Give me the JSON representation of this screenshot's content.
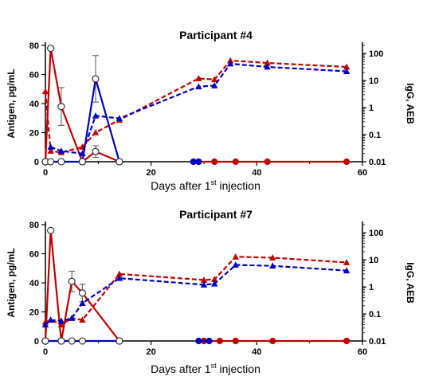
{
  "chart_data": [
    {
      "type": "line",
      "title": "Participant #4",
      "xlabel": "Days after 1st injection",
      "xlabel_parts": [
        "Days after 1",
        "st",
        " injection"
      ],
      "ylabel": "Antigen, pg/mL",
      "y2label": "IgG,  AEB",
      "xlim": [
        0,
        60
      ],
      "ylim": [
        0,
        80
      ],
      "y2lim": [
        0.01,
        200
      ],
      "y2scale": "log",
      "xticks": [
        "0",
        "20",
        "40",
        "60"
      ],
      "yticks": [
        "0",
        "20",
        "40",
        "60",
        "80"
      ],
      "y2ticks": [
        "0.01",
        "0.1",
        "1",
        "10",
        "100"
      ],
      "grid": false,
      "series": [
        {
          "color": "#c00000",
          "axis": "left",
          "style": "solid",
          "marker": "open-circle",
          "points": [
            [
              0,
              0
            ],
            [
              1,
              78
            ],
            [
              3,
              38
            ],
            [
              7,
              0
            ],
            [
              9.5,
              7
            ],
            [
              14,
              0
            ]
          ],
          "errors": [
            0,
            0,
            13,
            0,
            4,
            0
          ]
        },
        {
          "color": "#0000c0",
          "axis": "left",
          "style": "solid",
          "marker": "open-circle",
          "points": [
            [
              0,
              0
            ],
            [
              1,
              0
            ],
            [
              3,
              0
            ],
            [
              7,
              0
            ],
            [
              9.5,
              57
            ],
            [
              14,
              0
            ]
          ],
          "errors": [
            0,
            0,
            0,
            0,
            16,
            0
          ]
        },
        {
          "color": "#c00000",
          "axis": "left",
          "style": "solid",
          "marker": "filled-circle",
          "points": [
            [
              29,
              0
            ],
            [
              32,
              0
            ],
            [
              36,
              0
            ],
            [
              42,
              0
            ],
            [
              57,
              0
            ]
          ]
        },
        {
          "color": "#0000c0",
          "axis": "left",
          "style": "solid",
          "marker": "filled-circle",
          "points": [
            [
              28,
              0
            ],
            [
              29,
              0
            ]
          ]
        },
        {
          "color": "#c00000",
          "axis": "right",
          "style": "dashed",
          "marker": "triangle",
          "points": [
            [
              0,
              4
            ],
            [
              1,
              0.025
            ],
            [
              3,
              0.022
            ],
            [
              7,
              0.035
            ],
            [
              9.5,
              0.12
            ],
            [
              14,
              0.35
            ],
            [
              29,
              12
            ],
            [
              32,
              11
            ],
            [
              35,
              55
            ],
            [
              42,
              45
            ],
            [
              57,
              32
            ]
          ]
        },
        {
          "color": "#0000c0",
          "axis": "right",
          "style": "dashed",
          "marker": "triangle",
          "points": [
            [
              1,
              0.035
            ],
            [
              3,
              0.025
            ],
            [
              7,
              0.02
            ],
            [
              9.5,
              0.5
            ],
            [
              14,
              0.4
            ],
            [
              29,
              6
            ],
            [
              32,
              6.5
            ],
            [
              35,
              42
            ],
            [
              42,
              32
            ],
            [
              57,
              22
            ]
          ]
        }
      ]
    },
    {
      "type": "line",
      "title": "Participant #7",
      "xlabel": "Days after 1st injection",
      "xlabel_parts": [
        "Days after 1",
        "st",
        " injection"
      ],
      "ylabel": "Antigen, pg/mL",
      "y2label": "IgG,  AEB",
      "xlim": [
        0,
        60
      ],
      "ylim": [
        0,
        80
      ],
      "y2lim": [
        0.01,
        200
      ],
      "y2scale": "log",
      "xticks": [
        "0",
        "20",
        "40",
        "60"
      ],
      "yticks": [
        "0",
        "20",
        "40",
        "60",
        "80"
      ],
      "y2ticks": [
        "0.01",
        "0.1",
        "1",
        "10",
        "100"
      ],
      "grid": false,
      "series": [
        {
          "color": "#c00000",
          "axis": "left",
          "style": "solid",
          "marker": "open-circle",
          "points": [
            [
              0,
              0
            ],
            [
              1,
              76
            ],
            [
              3,
              0
            ],
            [
              5,
              41
            ],
            [
              7,
              33
            ],
            [
              14,
              0
            ]
          ],
          "errors": [
            0,
            0,
            0,
            7,
            6,
            0
          ]
        },
        {
          "color": "#0000c0",
          "axis": "left",
          "style": "solid",
          "marker": "open-circle",
          "points": [
            [
              0,
              0
            ],
            [
              3,
              0
            ],
            [
              5,
              0
            ],
            [
              7,
              0
            ],
            [
              14,
              0
            ]
          ]
        },
        {
          "color": "#c00000",
          "axis": "left",
          "style": "solid",
          "marker": "filled-circle",
          "points": [
            [
              30,
              0
            ],
            [
              33,
              0
            ],
            [
              36,
              0
            ],
            [
              43,
              0
            ],
            [
              57,
              0
            ]
          ]
        },
        {
          "color": "#0000c0",
          "axis": "left",
          "style": "solid",
          "marker": "filled-circle",
          "points": [
            [
              29,
              0
            ],
            [
              31,
              0
            ]
          ]
        },
        {
          "color": "#c00000",
          "axis": "right",
          "style": "dashed",
          "marker": "triangle",
          "points": [
            [
              0,
              0.05
            ],
            [
              1,
              0.06
            ],
            [
              3,
              0.04
            ],
            [
              5,
              0.07
            ],
            [
              7,
              0.06
            ],
            [
              14,
              3
            ],
            [
              30,
              1.8
            ],
            [
              32,
              1.9
            ],
            [
              36,
              13
            ],
            [
              43,
              12
            ],
            [
              57,
              8
            ]
          ]
        },
        {
          "color": "#0000c0",
          "axis": "right",
          "style": "dashed",
          "marker": "triangle",
          "points": [
            [
              0,
              0.04
            ],
            [
              1,
              0.06
            ],
            [
              3,
              0.055
            ],
            [
              5,
              0.07
            ],
            [
              7,
              0.25
            ],
            [
              14,
              2.1
            ],
            [
              30,
              1.2
            ],
            [
              32,
              1.3
            ],
            [
              36,
              6.5
            ],
            [
              43,
              6
            ],
            [
              57,
              4
            ]
          ]
        }
      ]
    }
  ]
}
